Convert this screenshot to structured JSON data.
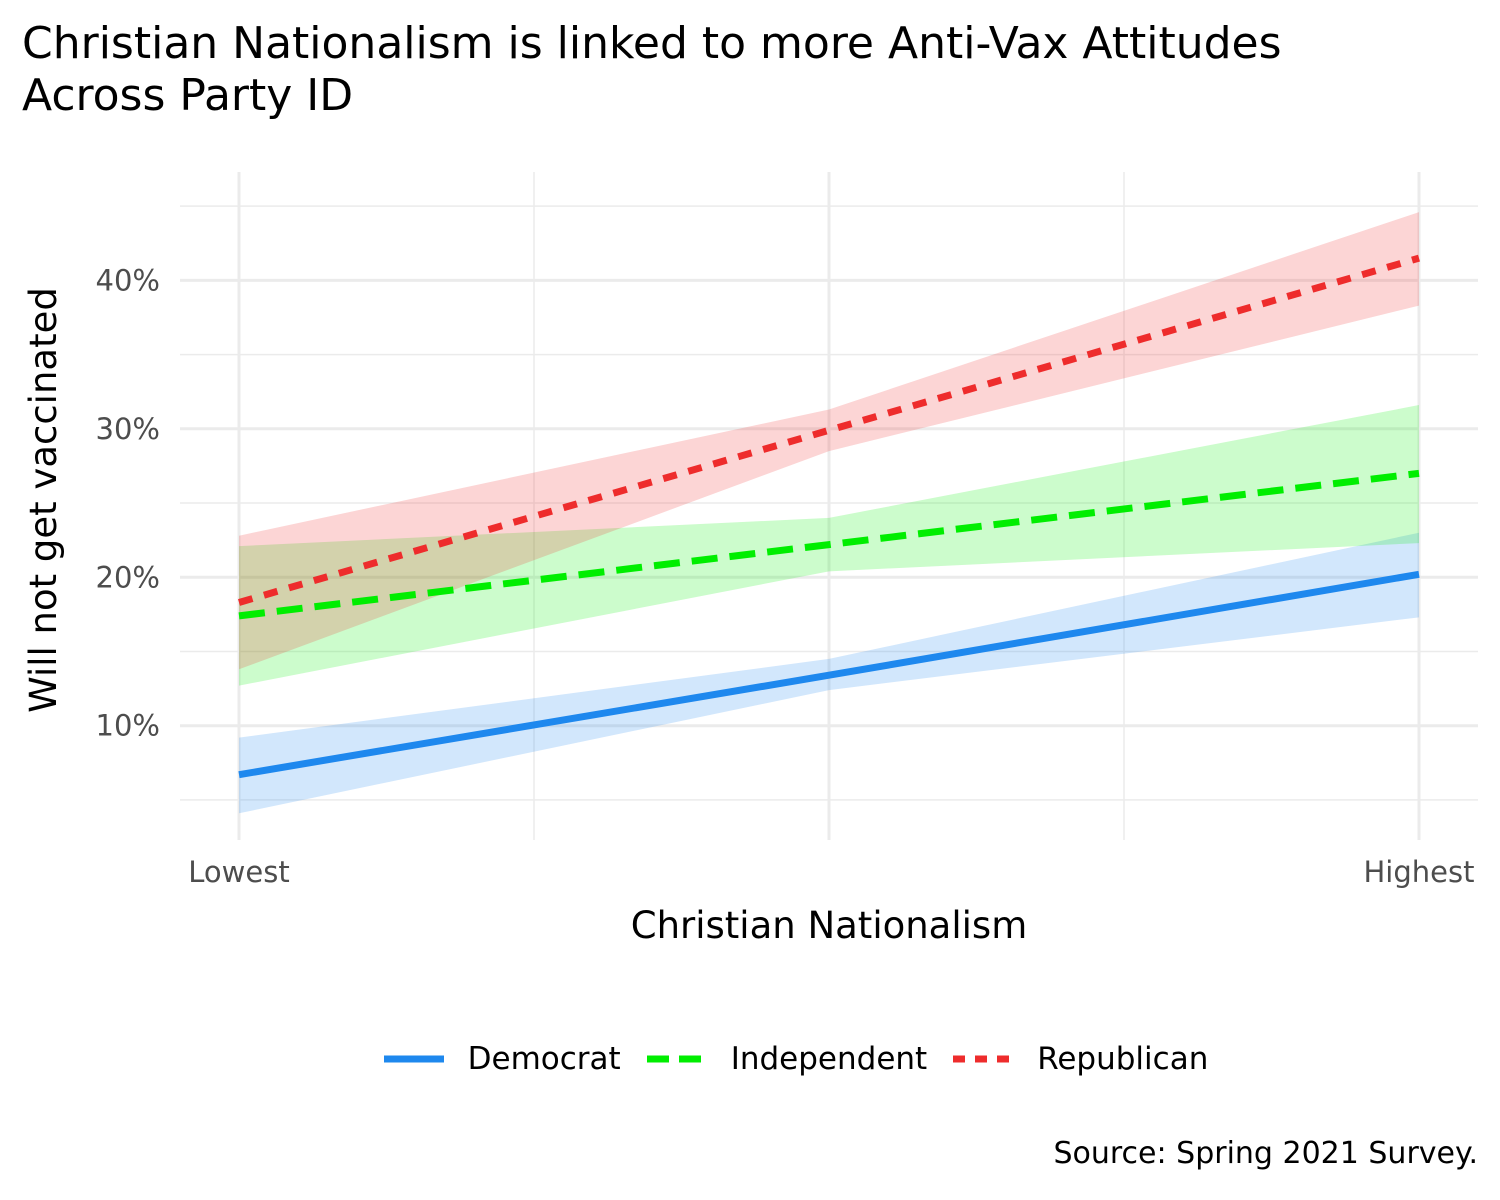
{
  "chart_data": {
    "type": "line",
    "title": [
      "Christian Nationalism is linked to more Anti-Vax Attitudes",
      "Across Party ID"
    ],
    "xlabel": "Christian Nationalism",
    "ylabel": "Will not get vaccinated",
    "x_ticks": [
      "Lowest",
      "",
      "Highest"
    ],
    "x": [
      0,
      0.5,
      1
    ],
    "xlim": [
      -0.05,
      1.05
    ],
    "ylim": [
      2.3,
      47.3
    ],
    "y_ticks": [
      10,
      20,
      30,
      40
    ],
    "y_tick_labels": [
      "10%",
      "20%",
      "30%",
      "40%"
    ],
    "grid": true,
    "legend_position": "bottom",
    "series": [
      {
        "name": "Democrat",
        "color": "#1e88ee",
        "dash": "solid",
        "values": [
          6.7,
          13.4,
          20.2
        ],
        "lower": [
          4.1,
          12.4,
          17.3
        ],
        "upper": [
          9.2,
          14.5,
          23.0
        ]
      },
      {
        "name": "Independent",
        "color": "#00ee00",
        "dash": "longdash",
        "values": [
          17.4,
          22.2,
          27.0
        ],
        "lower": [
          12.7,
          20.4,
          22.3
        ],
        "upper": [
          22.1,
          24.0,
          31.6
        ]
      },
      {
        "name": "Republican",
        "color": "#ee2c2c",
        "dash": "dashed",
        "values": [
          18.3,
          29.9,
          41.5
        ],
        "lower": [
          13.8,
          28.5,
          38.3
        ],
        "upper": [
          22.8,
          31.3,
          44.6
        ]
      }
    ]
  },
  "legend": {
    "items": [
      {
        "label": "Democrat"
      },
      {
        "label": "Independent"
      },
      {
        "label": "Republican"
      }
    ]
  },
  "caption": "Source: Spring 2021 Survey."
}
